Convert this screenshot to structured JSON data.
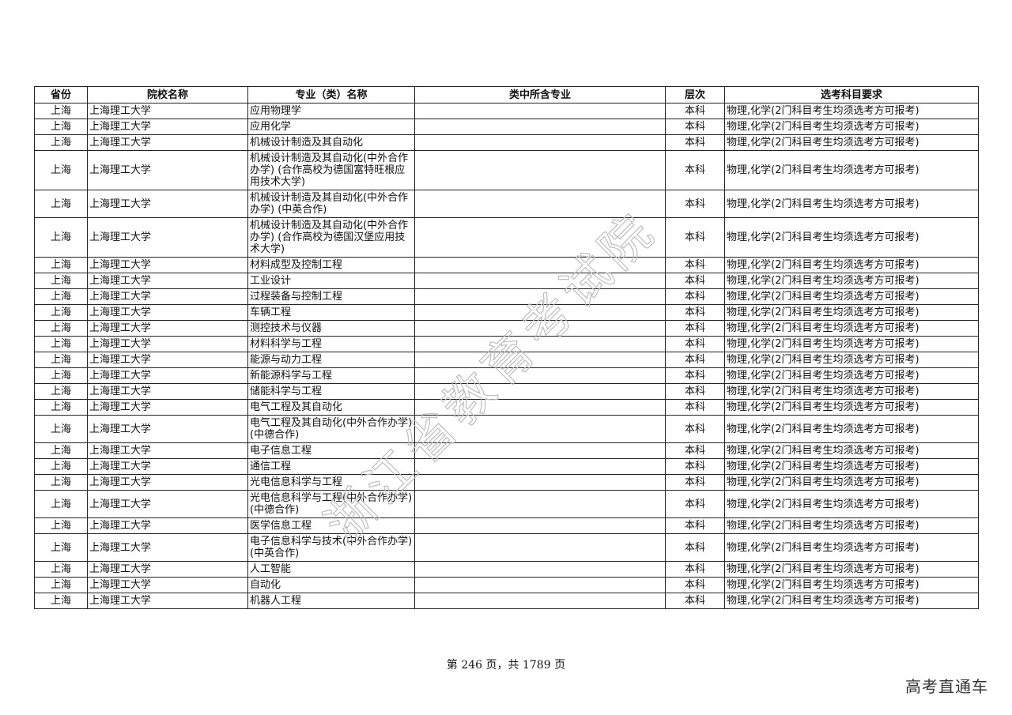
{
  "table": {
    "headers": [
      "省份",
      "院校名称",
      "专业（类）名称",
      "类中所含专业",
      "层次",
      "选考科目要求"
    ],
    "rows": [
      {
        "province": "上海",
        "school": "上海理工大学",
        "major": "应用物理学",
        "sub": "",
        "level": "本科",
        "req": "物理,化学(2门科目考生均须选考方可报考)"
      },
      {
        "province": "上海",
        "school": "上海理工大学",
        "major": "应用化学",
        "sub": "",
        "level": "本科",
        "req": "物理,化学(2门科目考生均须选考方可报考)"
      },
      {
        "province": "上海",
        "school": "上海理工大学",
        "major": "机械设计制造及其自动化",
        "sub": "",
        "level": "本科",
        "req": "物理,化学(2门科目考生均须选考方可报考)"
      },
      {
        "province": "上海",
        "school": "上海理工大学",
        "major": "机械设计制造及其自动化(中外合作办学) (合作高校为德国富特旺根应用技术大学)",
        "sub": "",
        "level": "本科",
        "req": "物理,化学(2门科目考生均须选考方可报考)"
      },
      {
        "province": "上海",
        "school": "上海理工大学",
        "major": "机械设计制造及其自动化(中外合作办学) (中英合作)",
        "sub": "",
        "level": "本科",
        "req": "物理,化学(2门科目考生均须选考方可报考)"
      },
      {
        "province": "上海",
        "school": "上海理工大学",
        "major": "机械设计制造及其自动化(中外合作办学) (合作高校为德国汉堡应用技术大学)",
        "sub": "",
        "level": "本科",
        "req": "物理,化学(2门科目考生均须选考方可报考)"
      },
      {
        "province": "上海",
        "school": "上海理工大学",
        "major": "材料成型及控制工程",
        "sub": "",
        "level": "本科",
        "req": "物理,化学(2门科目考生均须选考方可报考)"
      },
      {
        "province": "上海",
        "school": "上海理工大学",
        "major": "工业设计",
        "sub": "",
        "level": "本科",
        "req": "物理,化学(2门科目考生均须选考方可报考)"
      },
      {
        "province": "上海",
        "school": "上海理工大学",
        "major": "过程装备与控制工程",
        "sub": "",
        "level": "本科",
        "req": "物理,化学(2门科目考生均须选考方可报考)"
      },
      {
        "province": "上海",
        "school": "上海理工大学",
        "major": "车辆工程",
        "sub": "",
        "level": "本科",
        "req": "物理,化学(2门科目考生均须选考方可报考)"
      },
      {
        "province": "上海",
        "school": "上海理工大学",
        "major": "测控技术与仪器",
        "sub": "",
        "level": "本科",
        "req": "物理,化学(2门科目考生均须选考方可报考)"
      },
      {
        "province": "上海",
        "school": "上海理工大学",
        "major": "材料科学与工程",
        "sub": "",
        "level": "本科",
        "req": "物理,化学(2门科目考生均须选考方可报考)"
      },
      {
        "province": "上海",
        "school": "上海理工大学",
        "major": "能源与动力工程",
        "sub": "",
        "level": "本科",
        "req": "物理,化学(2门科目考生均须选考方可报考)"
      },
      {
        "province": "上海",
        "school": "上海理工大学",
        "major": "新能源科学与工程",
        "sub": "",
        "level": "本科",
        "req": "物理,化学(2门科目考生均须选考方可报考)"
      },
      {
        "province": "上海",
        "school": "上海理工大学",
        "major": "储能科学与工程",
        "sub": "",
        "level": "本科",
        "req": "物理,化学(2门科目考生均须选考方可报考)"
      },
      {
        "province": "上海",
        "school": "上海理工大学",
        "major": "电气工程及其自动化",
        "sub": "",
        "level": "本科",
        "req": "物理,化学(2门科目考生均须选考方可报考)"
      },
      {
        "province": "上海",
        "school": "上海理工大学",
        "major": "电气工程及其自动化(中外合作办学) (中德合作)",
        "sub": "",
        "level": "本科",
        "req": "物理,化学(2门科目考生均须选考方可报考)"
      },
      {
        "province": "上海",
        "school": "上海理工大学",
        "major": "电子信息工程",
        "sub": "",
        "level": "本科",
        "req": "物理,化学(2门科目考生均须选考方可报考)"
      },
      {
        "province": "上海",
        "school": "上海理工大学",
        "major": "通信工程",
        "sub": "",
        "level": "本科",
        "req": "物理,化学(2门科目考生均须选考方可报考)"
      },
      {
        "province": "上海",
        "school": "上海理工大学",
        "major": "光电信息科学与工程",
        "sub": "",
        "level": "本科",
        "req": "物理,化学(2门科目考生均须选考方可报考)"
      },
      {
        "province": "上海",
        "school": "上海理工大学",
        "major": "光电信息科学与工程(中外合作办学) (中德合作)",
        "sub": "",
        "level": "本科",
        "req": "物理,化学(2门科目考生均须选考方可报考)"
      },
      {
        "province": "上海",
        "school": "上海理工大学",
        "major": "医学信息工程",
        "sub": "",
        "level": "本科",
        "req": "物理,化学(2门科目考生均须选考方可报考)"
      },
      {
        "province": "上海",
        "school": "上海理工大学",
        "major": "电子信息科学与技术(中外合作办学) (中英合作)",
        "sub": "",
        "level": "本科",
        "req": "物理,化学(2门科目考生均须选考方可报考)"
      },
      {
        "province": "上海",
        "school": "上海理工大学",
        "major": "人工智能",
        "sub": "",
        "level": "本科",
        "req": "物理,化学(2门科目考生均须选考方可报考)"
      },
      {
        "province": "上海",
        "school": "上海理工大学",
        "major": "自动化",
        "sub": "",
        "level": "本科",
        "req": "物理,化学(2门科目考生均须选考方可报考)"
      },
      {
        "province": "上海",
        "school": "上海理工大学",
        "major": "机器人工程",
        "sub": "",
        "level": "本科",
        "req": "物理,化学(2门科目考生均须选考方可报考)"
      }
    ]
  },
  "watermark": "浙江省教育考试院",
  "footer": {
    "page_text": "第 246 页，共 1789 页"
  },
  "brand": "高考直通车"
}
